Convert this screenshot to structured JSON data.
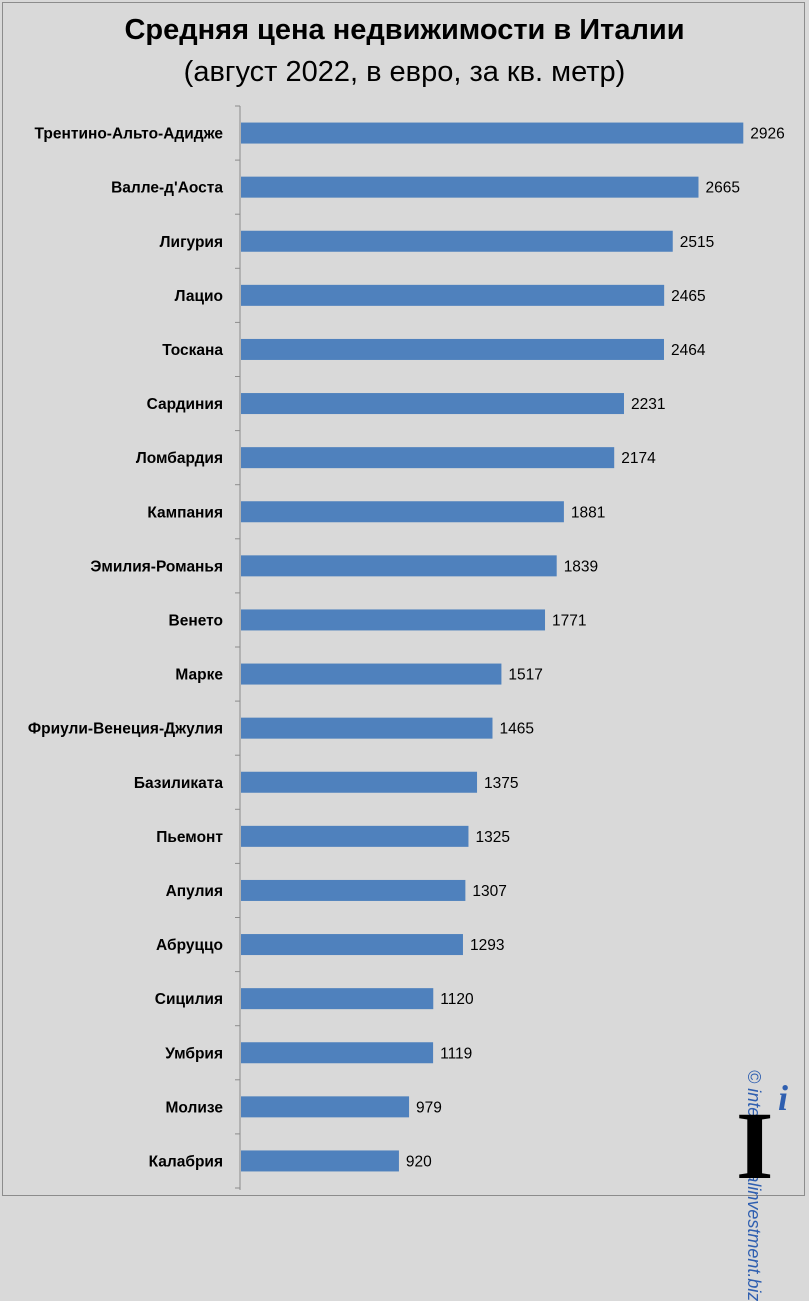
{
  "chart_data": {
    "type": "bar",
    "orientation": "horizontal",
    "title": "Средняя цена недвижимости в Италии",
    "subtitle": "(август 2022, в евро, за кв. метр)",
    "xlim": [
      0,
      3000
    ],
    "bar_color": "#4f81bd",
    "categories": [
      "Трентино-Альто-Адидже",
      "Валле-д'Аоста",
      "Лигурия",
      "Лацио",
      "Тоскана",
      "Сардиния",
      "Ломбардия",
      "Кампания",
      "Эмилия-Романья",
      "Венето",
      "Марке",
      "Фриули-Венеция-Джулия",
      "Базиликата",
      "Пьемонт",
      "Апулия",
      "Абруццо",
      "Сицилия",
      "Умбрия",
      "Молизе",
      "Калабрия"
    ],
    "values": [
      2926,
      2665,
      2515,
      2465,
      2464,
      2231,
      2174,
      1881,
      1839,
      1771,
      1517,
      1465,
      1375,
      1325,
      1307,
      1293,
      1120,
      1119,
      979,
      920
    ]
  },
  "watermark": "© internationalinvestment.biz",
  "logo": {
    "letter": "I",
    "superscript": "i"
  }
}
